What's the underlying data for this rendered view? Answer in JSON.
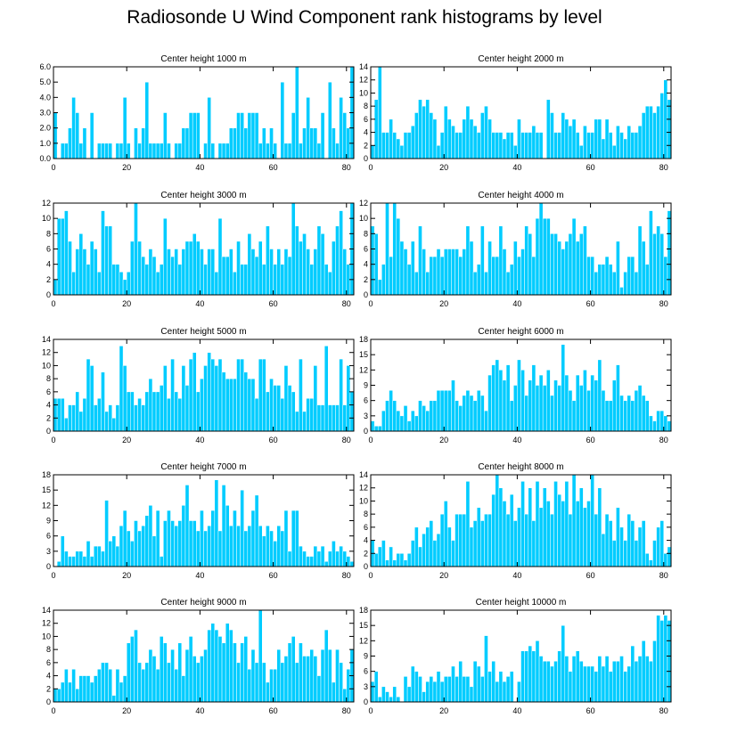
{
  "title": "Radiosonde U Wind Component rank histograms by level",
  "colors": {
    "bar": "#00ccff",
    "bar_edge": "#ffffff",
    "axis": "#000000"
  },
  "chart_data": [
    {
      "type": "bar",
      "title": "Center height 1000 m",
      "x_start": 0,
      "xlim": [
        0,
        82
      ],
      "xticks": [
        0,
        20,
        40,
        60,
        80
      ],
      "ylim": [
        0,
        6
      ],
      "yticks": [
        0,
        1,
        2,
        3,
        4,
        5,
        6
      ],
      "ytick_labels": [
        "0.0",
        "1.0",
        "2.0",
        "3.0",
        "4.0",
        "5.0",
        "6.0"
      ],
      "values": [
        3,
        0,
        1,
        1,
        2,
        4,
        3,
        1,
        2,
        0,
        3,
        0,
        1,
        1,
        1,
        1,
        0,
        1,
        1,
        4,
        1,
        0,
        2,
        1,
        2,
        5,
        1,
        1,
        1,
        1,
        3,
        1,
        0,
        1,
        1,
        2,
        2,
        3,
        3,
        3,
        0,
        1,
        4,
        1,
        0,
        1,
        1,
        1,
        2,
        2,
        3,
        3,
        2,
        3,
        3,
        3,
        1,
        2,
        1,
        2,
        1,
        0,
        5,
        1,
        1,
        3,
        6,
        1,
        2,
        4,
        2,
        2,
        1,
        3,
        0,
        5,
        2,
        1,
        4,
        3,
        2,
        6
      ]
    },
    {
      "type": "bar",
      "title": "Center height 2000 m",
      "x_start": 0,
      "xlim": [
        0,
        82
      ],
      "xticks": [
        0,
        20,
        40,
        60,
        80
      ],
      "ylim": [
        0,
        14
      ],
      "yticks": [
        0,
        2,
        4,
        6,
        8,
        10,
        12,
        14
      ],
      "ytick_labels": [
        "0",
        "2",
        "4",
        "6",
        "8",
        "10",
        "12",
        "14"
      ],
      "values": [
        2,
        9,
        14,
        4,
        4,
        6,
        4,
        3,
        2,
        4,
        4,
        5,
        7,
        9,
        8,
        9,
        7,
        6,
        2,
        4,
        8,
        6,
        5,
        4,
        4,
        6,
        8,
        6,
        5,
        4,
        7,
        8,
        6,
        4,
        4,
        4,
        3,
        4,
        4,
        2,
        6,
        4,
        4,
        4,
        5,
        4,
        4,
        0,
        9,
        7,
        4,
        4,
        7,
        6,
        5,
        6,
        4,
        2,
        5,
        4,
        4,
        6,
        6,
        3,
        6,
        4,
        2,
        5,
        4,
        3,
        5,
        4,
        4,
        5,
        7,
        8,
        8,
        7,
        8,
        10,
        12,
        9
      ]
    },
    {
      "type": "bar",
      "title": "Center height 3000 m",
      "x_start": 0,
      "xlim": [
        0,
        82
      ],
      "xticks": [
        0,
        20,
        40,
        60,
        80
      ],
      "ylim": [
        0,
        12
      ],
      "yticks": [
        0,
        2,
        4,
        6,
        8,
        10,
        12
      ],
      "ytick_labels": [
        "0",
        "2",
        "4",
        "6",
        "8",
        "10",
        "12"
      ],
      "values": [
        2,
        10,
        10,
        11,
        7,
        3,
        6,
        8,
        6,
        4,
        7,
        6,
        3,
        11,
        9,
        9,
        4,
        4,
        3,
        2,
        3,
        7,
        12,
        7,
        5,
        4,
        6,
        5,
        3,
        4,
        10,
        6,
        5,
        6,
        4,
        6,
        7,
        7,
        8,
        7,
        6,
        4,
        6,
        6,
        3,
        10,
        5,
        5,
        6,
        3,
        7,
        4,
        4,
        8,
        6,
        5,
        7,
        4,
        9,
        6,
        4,
        6,
        4,
        6,
        5,
        12,
        9,
        7,
        8,
        6,
        4,
        6,
        9,
        8,
        4,
        3,
        7,
        9,
        11,
        6,
        4,
        12
      ]
    },
    {
      "type": "bar",
      "title": "Center height 4000 m",
      "x_start": 0,
      "xlim": [
        0,
        82
      ],
      "xticks": [
        0,
        20,
        40,
        60,
        80
      ],
      "ylim": [
        0,
        12
      ],
      "yticks": [
        0,
        2,
        4,
        6,
        8,
        10,
        12
      ],
      "ytick_labels": [
        "0",
        "2",
        "4",
        "6",
        "8",
        "10",
        "12"
      ],
      "values": [
        9,
        8,
        2,
        4,
        12,
        5,
        12,
        10,
        7,
        6,
        4,
        7,
        3,
        9,
        6,
        3,
        5,
        5,
        6,
        5,
        6,
        6,
        6,
        6,
        5,
        6,
        9,
        7,
        3,
        4,
        9,
        3,
        7,
        5,
        5,
        9,
        6,
        3,
        4,
        7,
        5,
        6,
        9,
        8,
        5,
        10,
        12,
        10,
        10,
        8,
        8,
        7,
        6,
        7,
        8,
        10,
        7,
        8,
        9,
        5,
        5,
        3,
        4,
        4,
        5,
        4,
        3,
        7,
        1,
        3,
        5,
        5,
        3,
        9,
        7,
        4,
        11,
        8,
        9,
        8,
        5,
        11
      ]
    },
    {
      "type": "bar",
      "title": "Center height 5000 m",
      "x_start": 0,
      "xlim": [
        0,
        82
      ],
      "xticks": [
        0,
        20,
        40,
        60,
        80
      ],
      "ylim": [
        0,
        14
      ],
      "yticks": [
        0,
        2,
        4,
        6,
        8,
        10,
        12,
        14
      ],
      "ytick_labels": [
        "0",
        "2",
        "4",
        "6",
        "8",
        "10",
        "12",
        "14"
      ],
      "values": [
        5,
        5,
        5,
        2,
        4,
        4,
        6,
        3,
        5,
        11,
        10,
        4,
        5,
        9,
        3,
        4,
        2,
        4,
        13,
        10,
        6,
        6,
        4,
        5,
        4,
        6,
        8,
        6,
        6,
        7,
        10,
        5,
        11,
        6,
        5,
        10,
        7,
        11,
        12,
        6,
        8,
        10,
        12,
        11,
        10,
        11,
        9,
        8,
        8,
        8,
        11,
        11,
        9,
        8,
        8,
        5,
        11,
        11,
        6,
        8,
        7,
        7,
        5,
        10,
        7,
        6,
        3,
        11,
        3,
        5,
        5,
        10,
        4,
        4,
        13,
        4,
        4,
        4,
        11,
        4,
        10,
        6
      ]
    },
    {
      "type": "bar",
      "title": "Center height 6000 m",
      "x_start": 0,
      "xlim": [
        0,
        82
      ],
      "xticks": [
        0,
        20,
        40,
        60,
        80
      ],
      "ylim": [
        0,
        18
      ],
      "yticks": [
        0,
        3,
        6,
        9,
        12,
        15,
        18
      ],
      "ytick_labels": [
        "0",
        "3",
        "6",
        "9",
        "12",
        "15",
        "18"
      ],
      "values": [
        2,
        1,
        1,
        4,
        6,
        8,
        6,
        4,
        3,
        5,
        2,
        4,
        3,
        6,
        5,
        4,
        6,
        6,
        8,
        8,
        8,
        8,
        10,
        6,
        5,
        7,
        8,
        7,
        6,
        8,
        7,
        4,
        11,
        13,
        14,
        12,
        10,
        13,
        6,
        9,
        14,
        12,
        7,
        10,
        13,
        9,
        11,
        9,
        12,
        7,
        10,
        9,
        17,
        11,
        8,
        6,
        11,
        9,
        12,
        8,
        11,
        10,
        14,
        8,
        6,
        6,
        10,
        13,
        7,
        6,
        7,
        6,
        8,
        9,
        7,
        6,
        3,
        2,
        4,
        4,
        3,
        2
      ]
    },
    {
      "type": "bar",
      "title": "Center height 7000 m",
      "x_start": 0,
      "xlim": [
        0,
        82
      ],
      "xticks": [
        0,
        20,
        40,
        60,
        80
      ],
      "ylim": [
        0,
        18
      ],
      "yticks": [
        0,
        3,
        6,
        9,
        12,
        15,
        18
      ],
      "ytick_labels": [
        "0",
        "3",
        "6",
        "9",
        "12",
        "15",
        "18"
      ],
      "values": [
        0,
        1,
        6,
        3,
        2,
        2,
        3,
        3,
        2,
        5,
        2,
        4,
        4,
        3,
        13,
        5,
        6,
        4,
        8,
        11,
        7,
        5,
        9,
        7,
        8,
        10,
        12,
        6,
        11,
        2,
        9,
        11,
        9,
        8,
        9,
        12,
        16,
        9,
        9,
        7,
        11,
        7,
        8,
        11,
        17,
        7,
        16,
        12,
        8,
        11,
        8,
        15,
        7,
        8,
        11,
        14,
        8,
        6,
        8,
        7,
        5,
        8,
        7,
        11,
        3,
        11,
        11,
        4,
        3,
        2,
        2,
        4,
        3,
        4,
        1,
        3,
        5,
        3,
        4,
        3,
        2,
        1
      ]
    },
    {
      "type": "bar",
      "title": "Center height 8000 m",
      "x_start": 0,
      "xlim": [
        0,
        82
      ],
      "xticks": [
        0,
        20,
        40,
        60,
        80
      ],
      "ylim": [
        0,
        14
      ],
      "yticks": [
        0,
        2,
        4,
        6,
        8,
        10,
        12,
        14
      ],
      "ytick_labels": [
        "0",
        "2",
        "4",
        "6",
        "8",
        "10",
        "12",
        "14"
      ],
      "values": [
        4,
        2,
        3,
        4,
        1,
        3,
        1,
        2,
        2,
        1,
        2,
        4,
        6,
        3,
        5,
        6,
        7,
        4,
        5,
        8,
        10,
        6,
        4,
        8,
        8,
        8,
        13,
        6,
        7,
        9,
        7,
        8,
        8,
        11,
        14,
        12,
        10,
        8,
        11,
        7,
        9,
        13,
        8,
        12,
        7,
        13,
        9,
        12,
        10,
        8,
        13,
        11,
        10,
        13,
        8,
        14,
        10,
        12,
        9,
        10,
        14,
        8,
        12,
        5,
        8,
        7,
        4,
        9,
        6,
        4,
        8,
        7,
        4,
        6,
        7,
        2,
        1,
        4,
        6,
        7,
        2,
        3
      ]
    },
    {
      "type": "bar",
      "title": "Center height 9000 m",
      "x_start": 0,
      "xlim": [
        0,
        82
      ],
      "xticks": [
        0,
        20,
        40,
        60,
        80
      ],
      "ylim": [
        0,
        14
      ],
      "yticks": [
        0,
        2,
        4,
        6,
        8,
        10,
        12,
        14
      ],
      "ytick_labels": [
        "0",
        "2",
        "4",
        "6",
        "8",
        "10",
        "12",
        "14"
      ],
      "values": [
        2,
        2,
        3,
        5,
        3,
        5,
        2,
        4,
        4,
        4,
        3,
        4,
        5,
        6,
        6,
        5,
        1,
        5,
        3,
        4,
        9,
        10,
        11,
        6,
        5,
        6,
        8,
        7,
        5,
        10,
        9,
        6,
        8,
        5,
        9,
        4,
        8,
        10,
        7,
        6,
        7,
        8,
        11,
        12,
        11,
        10,
        9,
        12,
        11,
        9,
        6,
        9,
        10,
        5,
        8,
        6,
        14,
        6,
        3,
        5,
        5,
        8,
        6,
        7,
        9,
        10,
        6,
        9,
        7,
        7,
        8,
        7,
        4,
        8,
        11,
        8,
        3,
        8,
        6,
        2,
        5,
        8
      ]
    },
    {
      "type": "bar",
      "title": "Center height 10000 m",
      "x_start": 0,
      "xlim": [
        0,
        82
      ],
      "xticks": [
        0,
        20,
        40,
        60,
        80
      ],
      "ylim": [
        0,
        18
      ],
      "yticks": [
        0,
        3,
        6,
        9,
        12,
        15,
        18
      ],
      "ytick_labels": [
        "0",
        "3",
        "6",
        "9",
        "12",
        "15",
        "18"
      ],
      "values": [
        4,
        6,
        1,
        3,
        2,
        1,
        3,
        1,
        0,
        5,
        3,
        7,
        6,
        5,
        2,
        4,
        5,
        4,
        6,
        4,
        5,
        5,
        7,
        5,
        8,
        5,
        5,
        3,
        8,
        7,
        5,
        13,
        6,
        8,
        4,
        6,
        4,
        5,
        6,
        0,
        4,
        10,
        10,
        11,
        10,
        12,
        9,
        8,
        8,
        7,
        8,
        10,
        15,
        9,
        6,
        9,
        10,
        8,
        7,
        7,
        7,
        6,
        9,
        7,
        9,
        6,
        8,
        8,
        9,
        6,
        7,
        11,
        8,
        9,
        12,
        9,
        8,
        12,
        17,
        16,
        17,
        16
      ]
    }
  ]
}
